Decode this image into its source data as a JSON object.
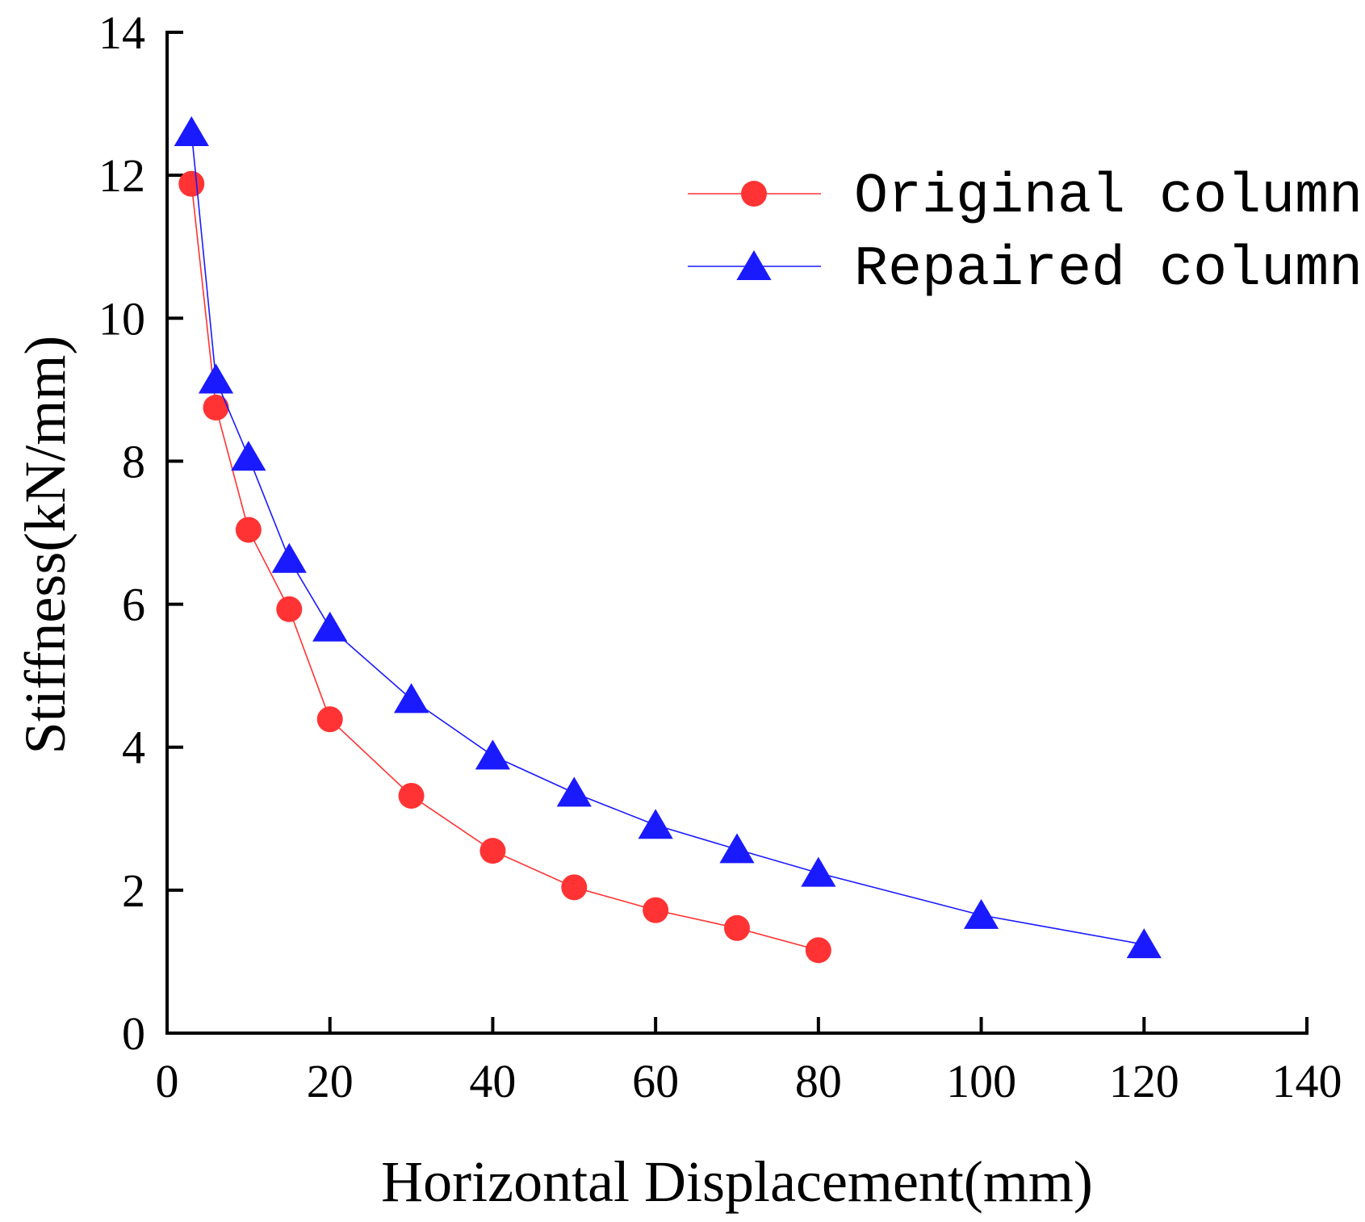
{
  "chart_data": {
    "type": "line",
    "title": "",
    "xlabel": "Horizontal Displacement(mm)",
    "ylabel": "Stiffness(kN/mm)",
    "xlim": [
      0,
      140
    ],
    "ylim": [
      0,
      14
    ],
    "xticks": [
      0,
      20,
      40,
      60,
      80,
      100,
      120,
      140
    ],
    "yticks": [
      0,
      2,
      4,
      6,
      8,
      10,
      12,
      14
    ],
    "grid": false,
    "legend_position": "top-right",
    "series": [
      {
        "name": "Original column",
        "color": "#ff3333",
        "marker": "circle",
        "x": [
          3,
          6,
          10,
          15,
          20,
          30,
          40,
          50,
          60,
          70,
          80
        ],
        "y": [
          11.88,
          8.75,
          7.04,
          5.93,
          4.39,
          3.32,
          2.55,
          2.04,
          1.72,
          1.47,
          1.16
        ]
      },
      {
        "name": "Repaired column",
        "color": "#1a1aff",
        "marker": "triangle",
        "x": [
          3,
          6,
          10,
          15,
          20,
          30,
          40,
          50,
          60,
          70,
          80,
          100,
          120
        ],
        "y": [
          12.6,
          9.14,
          8.06,
          6.63,
          5.67,
          4.67,
          3.88,
          3.36,
          2.91,
          2.57,
          2.24,
          1.65,
          1.24
        ]
      }
    ]
  }
}
